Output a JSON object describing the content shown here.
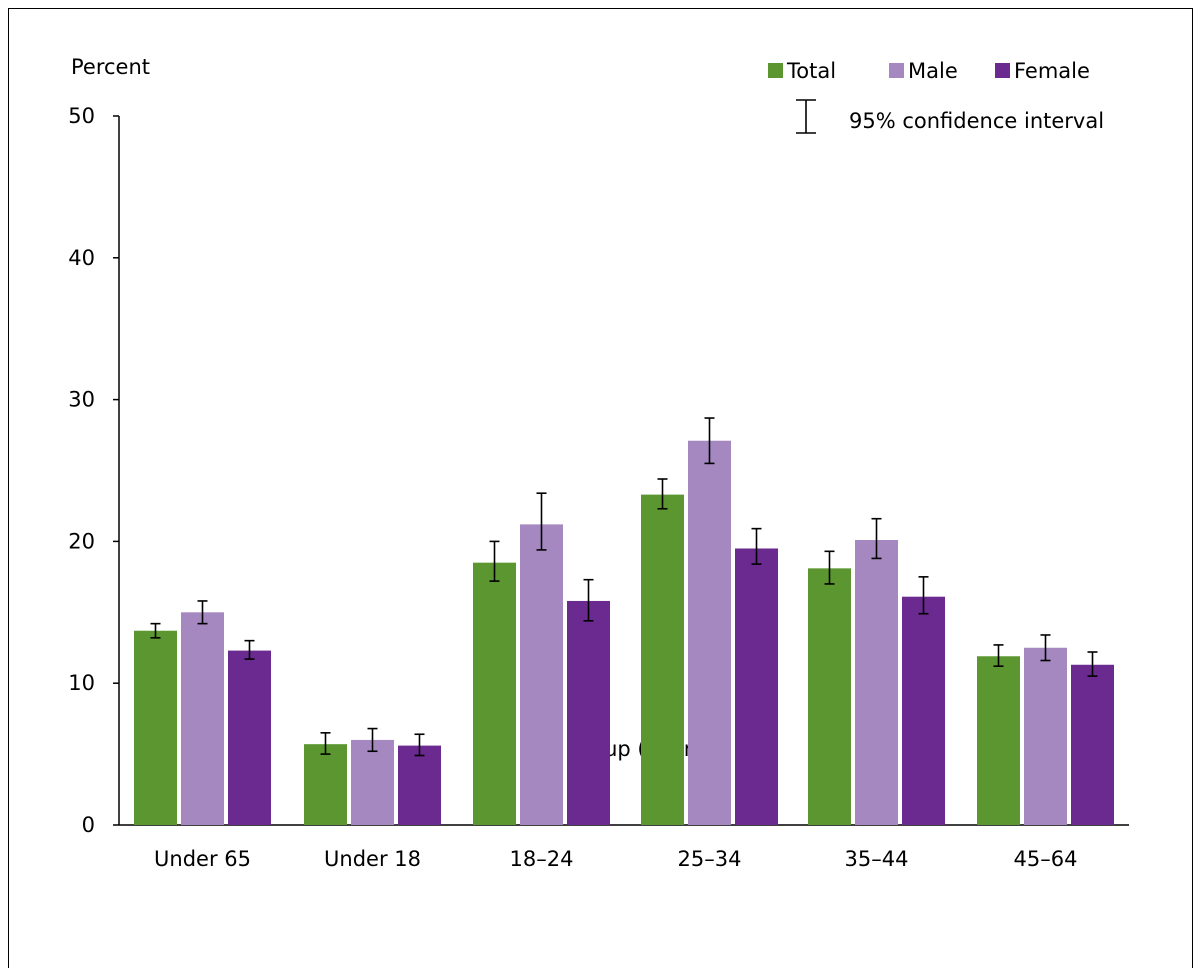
{
  "chart_data": {
    "type": "bar",
    "ylabel": "Percent",
    "xlabel": "Age group (years)",
    "ylim": [
      0,
      50
    ],
    "yticks": [
      0,
      10,
      20,
      30,
      40,
      50
    ],
    "categories": [
      "Under 65",
      "Under 18",
      "18–24",
      "25–34",
      "35–44",
      "45–64"
    ],
    "series": [
      {
        "name": "Total",
        "color": "#5b9630",
        "values": [
          13.7,
          5.7,
          18.5,
          23.3,
          18.1,
          11.9
        ],
        "ci_low": [
          13.2,
          5.0,
          17.2,
          22.3,
          17.0,
          11.2
        ],
        "ci_high": [
          14.2,
          6.5,
          20.0,
          24.4,
          19.3,
          12.7
        ]
      },
      {
        "name": "Male",
        "color": "#a688c1",
        "values": [
          15.0,
          6.0,
          21.2,
          27.1,
          20.1,
          12.5
        ],
        "ci_low": [
          14.2,
          5.2,
          19.4,
          25.5,
          18.8,
          11.6
        ],
        "ci_high": [
          15.8,
          6.8,
          23.4,
          28.7,
          21.6,
          13.4
        ]
      },
      {
        "name": "Female",
        "color": "#6b2a90",
        "values": [
          12.3,
          5.6,
          15.8,
          19.5,
          16.1,
          11.3
        ],
        "ci_low": [
          11.7,
          4.9,
          14.4,
          18.4,
          14.9,
          10.5
        ],
        "ci_high": [
          13.0,
          6.4,
          17.3,
          20.9,
          17.5,
          12.2
        ]
      }
    ],
    "legend_position": "top-right",
    "ci_legend_label": "95% confidence interval"
  }
}
